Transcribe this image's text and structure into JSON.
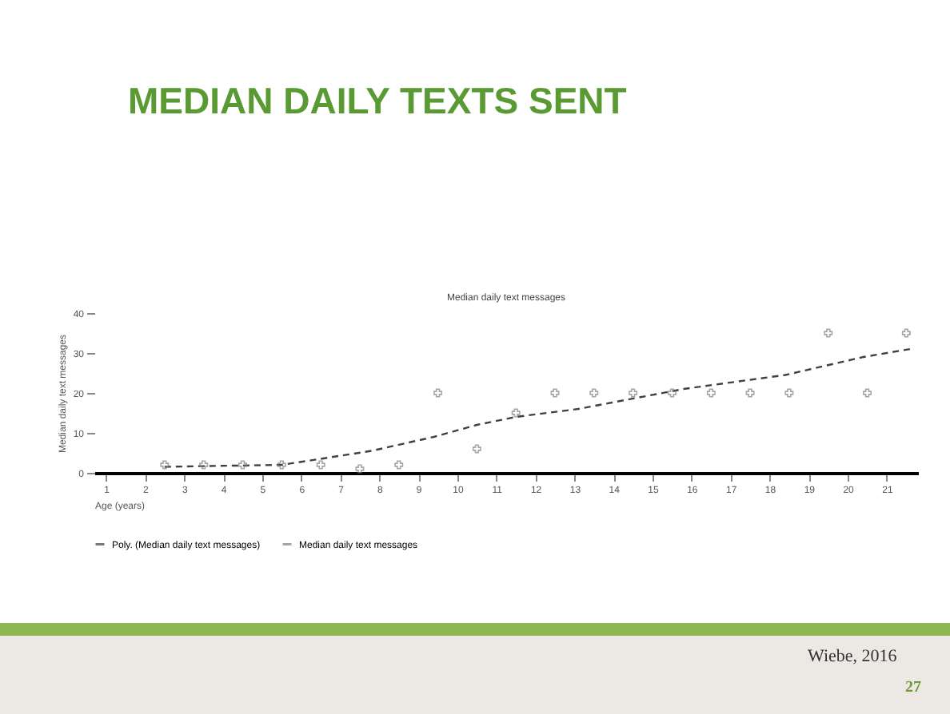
{
  "chart_data": {
    "type": "scatter",
    "title": "MEDIAN DAILY TEXTS SENT",
    "subtitle": "Median daily text messages",
    "xlabel": "Age (years)",
    "ylabel": "Median daily text messages",
    "x": [
      2.5,
      3.5,
      4.5,
      5.5,
      6.5,
      7.5,
      8.5,
      9.5,
      10.5,
      11.5,
      12.5,
      13.5,
      14.5,
      15.5,
      16.5,
      17.5,
      18.5,
      19.5,
      20.5,
      21.5
    ],
    "series": [
      {
        "name": "Poly. (Median daily text messages)",
        "type": "line",
        "color": "#404040",
        "line_style": "dashed",
        "marker": "none",
        "x": [
          2.5,
          5.5,
          6.5,
          7.8,
          9.4,
          10.5,
          11.5,
          13.1,
          15.8,
          18.4,
          20.4,
          21.6
        ],
        "values": [
          1.5,
          2,
          3.5,
          5.5,
          9,
          12,
          14,
          16,
          21,
          24.5,
          29,
          31
        ]
      },
      {
        "name": "Median daily text messages",
        "color": "#808080",
        "marker": "cross",
        "values": [
          2,
          2,
          2,
          2,
          2,
          1,
          2,
          20,
          6,
          15,
          20,
          20,
          20,
          20,
          20,
          20,
          20,
          35,
          20,
          35
        ]
      }
    ],
    "xlim": [
      0.7,
      21.8
    ],
    "xticks": [
      1,
      2,
      3,
      4,
      5,
      6,
      7,
      8,
      9,
      10,
      11,
      12,
      13,
      14,
      15,
      16,
      17,
      18,
      19,
      20,
      21
    ],
    "ylim": [
      0,
      40
    ],
    "yticks": [
      0,
      10,
      20,
      30,
      40
    ],
    "grid": false,
    "legend": "bottom",
    "annotations": [
      "Wiebe, 2016",
      "27"
    ]
  }
}
